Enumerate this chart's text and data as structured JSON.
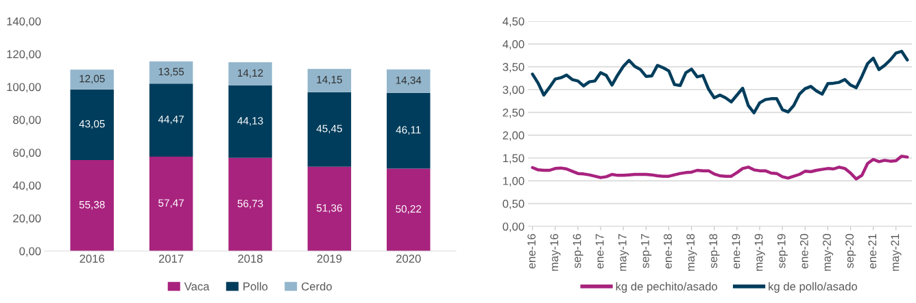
{
  "chart_data": [
    {
      "type": "bar",
      "stacked": true,
      "categories": [
        "2016",
        "2017",
        "2018",
        "2019",
        "2020"
      ],
      "series": [
        {
          "name": "Vaca",
          "color": "#a8237e",
          "values": [
            55.38,
            57.47,
            56.73,
            51.36,
            50.22
          ],
          "value_labels": [
            "55,38",
            "57,47",
            "56,73",
            "51,36",
            "50,22"
          ]
        },
        {
          "name": "Pollo",
          "color": "#003d5c",
          "values": [
            43.05,
            44.47,
            44.13,
            45.45,
            46.11
          ],
          "value_labels": [
            "43,05",
            "44,47",
            "44,13",
            "45,45",
            "46,11"
          ]
        },
        {
          "name": "Cerdo",
          "color": "#93b6cc",
          "values": [
            12.05,
            13.55,
            14.12,
            14.15,
            14.34
          ],
          "value_labels": [
            "12,05",
            "13,55",
            "14,12",
            "14,15",
            "14,34"
          ]
        }
      ],
      "ylim": [
        0,
        140
      ],
      "yticks": [
        {
          "value": 0,
          "label": "0,00"
        },
        {
          "value": 20,
          "label": "20,00"
        },
        {
          "value": 40,
          "label": "40,00"
        },
        {
          "value": 60,
          "label": "60,00"
        },
        {
          "value": 80,
          "label": "80,00"
        },
        {
          "value": 100,
          "label": "100,00"
        },
        {
          "value": 120,
          "label": "120,00"
        },
        {
          "value": 140,
          "label": "140,00"
        }
      ],
      "grid": false,
      "legend": "bottom"
    },
    {
      "type": "line",
      "categories": [
        "ene-16",
        null,
        null,
        null,
        "may-16",
        null,
        null,
        null,
        "sep-16",
        null,
        null,
        null,
        "ene-17",
        null,
        null,
        null,
        "may-17",
        null,
        null,
        null,
        "sep-17",
        null,
        null,
        null,
        "ene-18",
        null,
        null,
        null,
        "may-18",
        null,
        null,
        null,
        "sep-18",
        null,
        null,
        null,
        "ene-19",
        null,
        null,
        null,
        "may-19",
        null,
        null,
        null,
        "sep-19",
        null,
        null,
        null,
        "ene-20",
        null,
        null,
        null,
        "may-20",
        null,
        null,
        null,
        "sep-20",
        null,
        null,
        null,
        "ene-21",
        null,
        null,
        null,
        "may-21",
        null,
        null
      ],
      "series": [
        {
          "name": "kg de pechito/asado",
          "color": "#a8237e",
          "values": [
            1.29,
            1.24,
            1.23,
            1.23,
            1.27,
            1.28,
            1.26,
            1.21,
            1.16,
            1.15,
            1.13,
            1.1,
            1.07,
            1.09,
            1.14,
            1.12,
            1.12,
            1.13,
            1.14,
            1.14,
            1.14,
            1.13,
            1.11,
            1.1,
            1.1,
            1.13,
            1.16,
            1.18,
            1.19,
            1.23,
            1.22,
            1.22,
            1.15,
            1.11,
            1.1,
            1.1,
            1.18,
            1.27,
            1.3,
            1.24,
            1.22,
            1.22,
            1.17,
            1.16,
            1.09,
            1.06,
            1.1,
            1.14,
            1.21,
            1.2,
            1.23,
            1.25,
            1.27,
            1.26,
            1.3,
            1.27,
            1.17,
            1.04,
            1.12,
            1.38,
            1.47,
            1.42,
            1.45,
            1.43,
            1.44,
            1.54,
            1.52
          ]
        },
        {
          "name": "kg de pollo/asado",
          "color": "#003d5c",
          "values": [
            3.34,
            3.14,
            2.88,
            3.05,
            3.23,
            3.26,
            3.32,
            3.22,
            3.19,
            3.08,
            3.17,
            3.19,
            3.37,
            3.31,
            3.1,
            3.32,
            3.51,
            3.64,
            3.51,
            3.44,
            3.29,
            3.3,
            3.53,
            3.48,
            3.41,
            3.11,
            3.09,
            3.37,
            3.45,
            3.28,
            3.31,
            3.01,
            2.82,
            2.88,
            2.82,
            2.73,
            2.88,
            3.03,
            2.65,
            2.49,
            2.71,
            2.78,
            2.8,
            2.8,
            2.56,
            2.51,
            2.65,
            2.9,
            3.02,
            3.07,
            2.97,
            2.9,
            3.13,
            3.14,
            3.16,
            3.22,
            3.1,
            3.04,
            3.29,
            3.57,
            3.69,
            3.44,
            3.53,
            3.65,
            3.8,
            3.84,
            3.65
          ]
        }
      ],
      "ylim": [
        0,
        4.5
      ],
      "yticks": [
        {
          "value": 0,
          "label": "0,00"
        },
        {
          "value": 0.5,
          "label": "0,50"
        },
        {
          "value": 1,
          "label": "1,00"
        },
        {
          "value": 1.5,
          "label": "1,50"
        },
        {
          "value": 2,
          "label": "2,00"
        },
        {
          "value": 2.5,
          "label": "2,50"
        },
        {
          "value": 3,
          "label": "3,00"
        },
        {
          "value": 3.5,
          "label": "3,50"
        },
        {
          "value": 4,
          "label": "4,00"
        },
        {
          "value": 4.5,
          "label": "4,50"
        }
      ],
      "grid": "y",
      "legend": "bottom",
      "marker": "none",
      "line_style": "solid"
    }
  ]
}
